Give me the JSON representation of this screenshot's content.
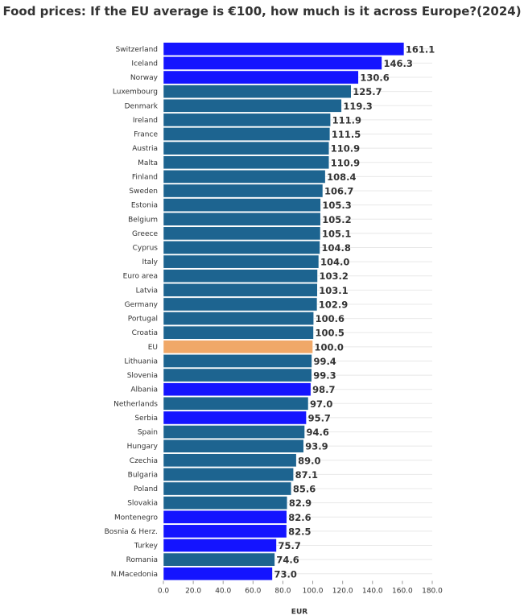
{
  "chart_data": {
    "type": "bar",
    "orientation": "horizontal",
    "title": "Food prices: If the EU average is €100, how much is it across Europe?(2024)",
    "xlabel": "EUR",
    "ylabel": "",
    "xlim": [
      0,
      180
    ],
    "xticks": [
      "0.0",
      "20.0",
      "40.0",
      "60.0",
      "80.0",
      "100.0",
      "120.0",
      "140.0",
      "160.0",
      "180.0"
    ],
    "grid": "horizontal",
    "colors": {
      "non_eu": "#1414ff",
      "eu_member": "#1d6490",
      "eu_average": "#f0a868"
    },
    "categories": [
      "Switzerland",
      "Iceland",
      "Norway",
      "Luxembourg",
      "Denmark",
      "Ireland",
      "France",
      "Austria",
      "Malta",
      "Finland",
      "Sweden",
      "Estonia",
      "Belgium",
      "Greece",
      "Cyprus",
      "Italy",
      "Euro area",
      "Latvia",
      "Germany",
      "Portugal",
      "Croatia",
      "EU",
      "Lithuania",
      "Slovenia",
      "Albania",
      "Netherlands",
      "Serbia",
      "Spain",
      "Hungary",
      "Czechia",
      "Bulgaria",
      "Poland",
      "Slovakia",
      "Montenegro",
      "Bosnia & Herz.",
      "Turkey",
      "Romania",
      "N.Macedonia"
    ],
    "values": [
      161.1,
      146.3,
      130.6,
      125.7,
      119.3,
      111.9,
      111.5,
      110.9,
      110.9,
      108.4,
      106.7,
      105.3,
      105.2,
      105.1,
      104.8,
      104.0,
      103.2,
      103.1,
      102.9,
      100.6,
      100.5,
      100.0,
      99.4,
      99.3,
      98.7,
      97.0,
      95.7,
      94.6,
      93.9,
      89.0,
      87.1,
      85.6,
      82.9,
      82.6,
      82.5,
      75.7,
      74.6,
      73.0
    ],
    "labels": [
      "161.1",
      "146.3",
      "130.6",
      "125.7",
      "119.3",
      "111.9",
      "111.5",
      "110.9",
      "110.9",
      "108.4",
      "106.7",
      "105.3",
      "105.2",
      "105.1",
      "104.8",
      "104.0",
      "103.2",
      "103.1",
      "102.9",
      "100.6",
      "100.5",
      "100.0",
      "99.4",
      "99.3",
      "98.7",
      "97.0",
      "95.7",
      "94.6",
      "93.9",
      "89.0",
      "87.1",
      "85.6",
      "82.9",
      "82.6",
      "82.5",
      "75.7",
      "74.6",
      "73.0"
    ],
    "groups": [
      "non_eu",
      "non_eu",
      "non_eu",
      "eu_member",
      "eu_member",
      "eu_member",
      "eu_member",
      "eu_member",
      "eu_member",
      "eu_member",
      "eu_member",
      "eu_member",
      "eu_member",
      "eu_member",
      "eu_member",
      "eu_member",
      "eu_member",
      "eu_member",
      "eu_member",
      "eu_member",
      "eu_member",
      "eu_average",
      "eu_member",
      "eu_member",
      "non_eu",
      "eu_member",
      "non_eu",
      "eu_member",
      "eu_member",
      "eu_member",
      "eu_member",
      "eu_member",
      "eu_member",
      "non_eu",
      "non_eu",
      "non_eu",
      "eu_member",
      "non_eu"
    ]
  }
}
